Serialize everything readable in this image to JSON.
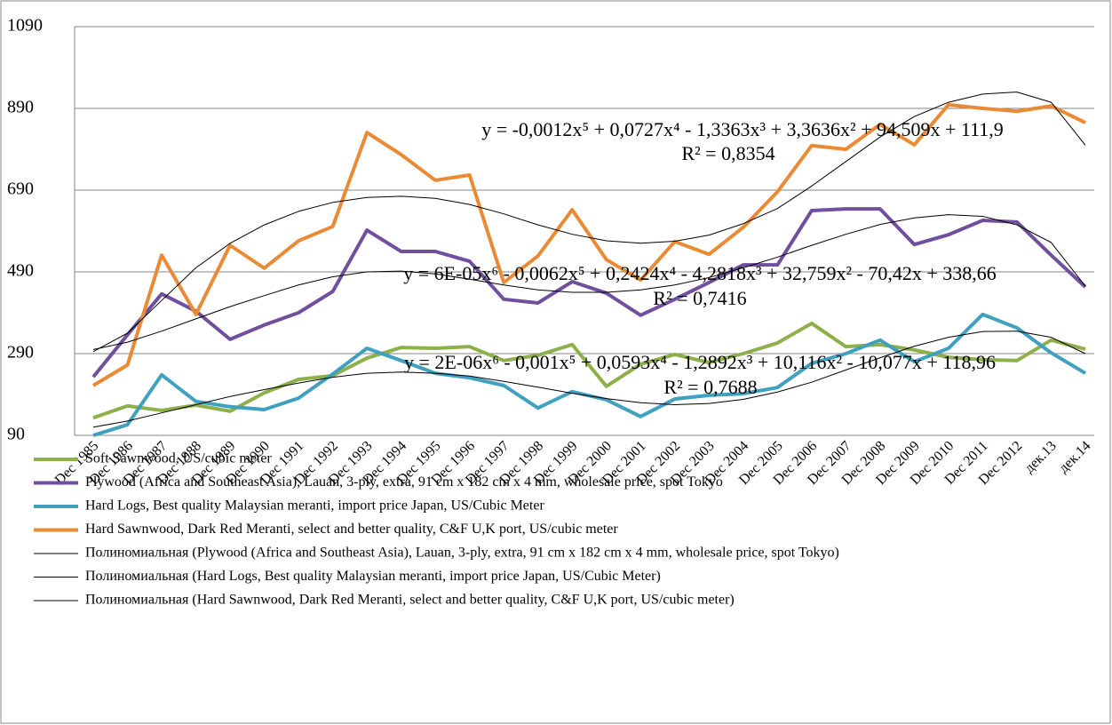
{
  "chart_data": {
    "type": "line",
    "categories": [
      "Dec 1985",
      "Dec 1986",
      "Dec 1987",
      "Dec 1988",
      "Dec 1989",
      "Dec 1990",
      "Dec 1991",
      "Dec 1992",
      "Dec 1993",
      "Dec 1994",
      "Dec 1995",
      "Dec 1996",
      "Dec 1997",
      "Dec 1998",
      "Dec 1999",
      "Dec 2000",
      "Dec 2001",
      "Dec 2002",
      "Dec 2003",
      "Dec 2004",
      "Dec 2005",
      "Dec 2006",
      "Dec 2007",
      "Dec 2008",
      "Dec 2009",
      "Dec 2010",
      "Dec 2011",
      "Dec 2012",
      "дек.13",
      "дек.14"
    ],
    "ylim": [
      90,
      1090
    ],
    "yticks": [
      90,
      290,
      490,
      690,
      890,
      1090
    ],
    "grid": true,
    "legend": "bottom",
    "series": [
      {
        "name": "Soft Sawnwood,  US/cubic meter",
        "color": "#8db04a",
        "width": 4,
        "values": [
          133,
          162,
          151,
          164,
          149,
          194,
          227,
          236,
          279,
          305,
          303,
          307,
          273,
          286,
          312,
          210,
          264,
          288,
          268,
          290,
          316,
          364,
          307,
          312,
          299,
          281,
          275,
          273,
          323,
          301
        ]
      },
      {
        "name": "Plywood (Africa and Southeast Asia), Lauan, 3-ply, extra, 91 cm x 182 cm x 4 mm, wholesale price, spot Tokyo",
        "color": "#6f4f9e",
        "width": 4,
        "values": [
          233,
          336,
          436,
          394,
          325,
          360,
          390,
          442,
          592,
          540,
          540,
          516,
          423,
          414,
          466,
          438,
          384,
          423,
          464,
          507,
          507,
          640,
          644,
          644,
          557,
          581,
          616,
          612,
          531,
          453
        ]
      },
      {
        "name": "Hard Logs, Best quality Malaysian meranti, import price Japan, US/Cubic Meter",
        "color": "#3fa0bf",
        "width": 4,
        "values": [
          90,
          116,
          238,
          173,
          160,
          153,
          181,
          240,
          303,
          273,
          242,
          231,
          212,
          157,
          197,
          177,
          136,
          179,
          188,
          192,
          207,
          266,
          290,
          323,
          270,
          303,
          386,
          353,
          292,
          242
        ]
      },
      {
        "name": "Hard Sawnwood, Dark Red Meranti, select and better quality, C&F U,K port, US/cubic meter",
        "color": "#ea8a34",
        "width": 4,
        "values": [
          212,
          262,
          531,
          386,
          555,
          499,
          566,
          601,
          831,
          777,
          714,
          727,
          464,
          529,
          642,
          520,
          470,
          564,
          533,
          599,
          686,
          799,
          790,
          851,
          801,
          899,
          890,
          883,
          896,
          855
        ]
      },
      {
        "name": "Полиномиальная  (Plywood (Africa and Southeast Asia), Lauan,  3-ply, extra, 91 cm x 182 cm x 4 mm, wholesale price, spot Tokyo)",
        "color": "#000000",
        "width": 1,
        "values": [
          300,
          318,
          345,
          375,
          405,
          432,
          458,
          478,
          490,
          492,
          485,
          472,
          458,
          446,
          440,
          440,
          446,
          458,
          476,
          500,
          526,
          555,
          582,
          606,
          622,
          630,
          626,
          605,
          562,
          455
        ]
      },
      {
        "name": "Полиномиальная  (Hard Logs, Best quality Malaysian meranti, import price Japan, US/Cubic Meter)",
        "color": "#000000",
        "width": 1,
        "values": [
          110,
          125,
          145,
          165,
          185,
          202,
          218,
          232,
          242,
          245,
          242,
          235,
          222,
          208,
          193,
          180,
          170,
          165,
          168,
          178,
          196,
          220,
          250,
          280,
          308,
          330,
          344,
          345,
          330,
          290
        ]
      },
      {
        "name": "Полиномиальная  (Hard Sawnwood,  Dark Red Meranti, select and better quality, C&F U,K port, US/cubic meter)",
        "color": "#000000",
        "width": 1,
        "values": [
          295,
          340,
          420,
          500,
          560,
          605,
          638,
          660,
          672,
          675,
          670,
          655,
          632,
          605,
          582,
          566,
          560,
          565,
          580,
          608,
          645,
          700,
          760,
          820,
          870,
          905,
          925,
          930,
          905,
          800
        ]
      }
    ],
    "annotations": [
      {
        "equation": "y = -0,0012x⁵ + 0,0727x⁴ - 1,3363x³ + 3,3636x² + 94,509x + 111,9",
        "r2": "R² = 0,8354"
      },
      {
        "equation": "y = 6E-05x⁶ - 0,0062x⁵ + 0,2424x⁴ - 4,2818x³ + 32,759x² - 70,42x + 338,66",
        "r2": "R² = 0,7416"
      },
      {
        "equation": "y = 2E-06x⁶ - 0,001x⁵ + 0,0593x⁴ - 1,2892x³ + 10,116x² - 10,077x + 118,96",
        "r2": "R² = 0,7688"
      }
    ]
  }
}
